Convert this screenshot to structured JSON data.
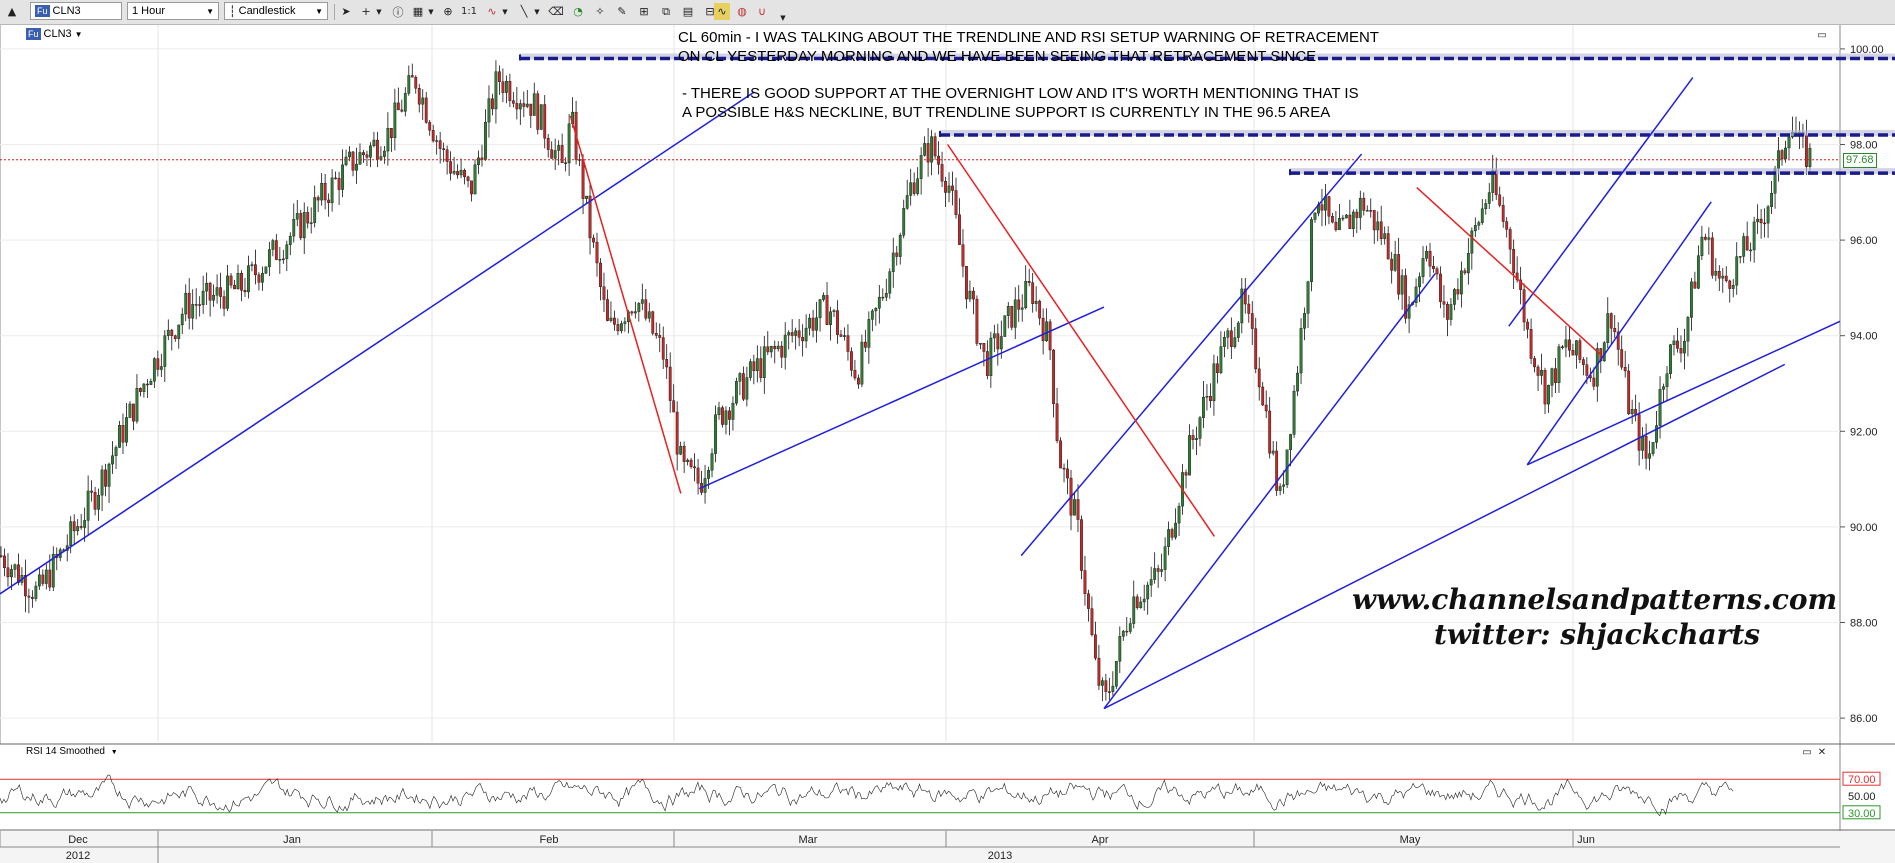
{
  "toolbar": {
    "symbol": "CLN3",
    "symbol_badge": "Fu",
    "interval": "1 Hour",
    "chart_type": "Candlestick"
  },
  "symbol_tag": {
    "badge": "Fu",
    "label": "CLN3"
  },
  "annotations": {
    "line1": "CL 60min - I WAS TALKING ABOUT THE TRENDLINE AND RSI SETUP WARNING OF RETRACEMENT",
    "line2": "ON CL YESTERDAY MORNING AND WE HAVE BEEN SEEING THAT RETRACEMENT SINCE",
    "line3": "- THERE IS GOOD SUPPORT AT THE OVERNIGHT LOW AND IT'S WORTH MENTIONING THAT IS",
    "line4": "A POSSIBLE H&S NECKLINE, BUT TRENDLINE SUPPORT IS CURRENTLY IN THE 96.5 AREA"
  },
  "watermark": {
    "site": "www.channelsandpatterns.com",
    "twitter": "twitter: shjackcharts"
  },
  "price_axis": {
    "ticks": [
      "100.00",
      "98.00",
      "96.00",
      "94.00",
      "92.00",
      "90.00",
      "88.00",
      "86.00"
    ],
    "current_price": "97.68",
    "current_color": "#2a8a2a"
  },
  "rsi": {
    "label": "RSI 14 Smoothed",
    "upper": "70.00",
    "mid": "50.00",
    "lower": "30.00",
    "upper_color": "#e03030",
    "lower_color": "#2a9a2a"
  },
  "time_axis": {
    "months": [
      "Dec",
      "Jan",
      "Feb",
      "Mar",
      "Apr",
      "May",
      "Jun"
    ],
    "years": [
      "2012",
      "2013"
    ]
  },
  "colors": {
    "bull": "#2e7d32",
    "bear": "#c62828",
    "trend_blue": "#1f1fe0",
    "trend_red": "#e82020",
    "level_navy": "#1a1a8a",
    "price_line": "#d02020"
  },
  "chart_data": {
    "type": "candlestick",
    "ylim": [
      85.5,
      100.5
    ],
    "levels": [
      99.8,
      98.2,
      97.4
    ],
    "current": 97.68,
    "swing_points": [
      [
        0,
        89.4
      ],
      [
        0.02,
        88.6
      ],
      [
        0.05,
        90.6
      ],
      [
        0.08,
        93.2
      ],
      [
        0.1,
        94.6
      ],
      [
        0.13,
        95.0
      ],
      [
        0.16,
        96.2
      ],
      [
        0.19,
        97.6
      ],
      [
        0.21,
        98.2
      ],
      [
        0.225,
        99.4
      ],
      [
        0.24,
        97.8
      ],
      [
        0.255,
        97.0
      ],
      [
        0.27,
        99.4
      ],
      [
        0.29,
        98.8
      ],
      [
        0.305,
        97.5
      ],
      [
        0.31,
        98.5
      ],
      [
        0.32,
        96.2
      ],
      [
        0.33,
        94.1
      ],
      [
        0.345,
        94.8
      ],
      [
        0.36,
        93.6
      ],
      [
        0.37,
        91.2
      ],
      [
        0.38,
        90.9
      ],
      [
        0.39,
        92.3
      ],
      [
        0.41,
        93.3
      ],
      [
        0.43,
        94.0
      ],
      [
        0.45,
        94.6
      ],
      [
        0.465,
        93.2
      ],
      [
        0.48,
        95.0
      ],
      [
        0.495,
        97.2
      ],
      [
        0.505,
        98.0
      ],
      [
        0.515,
        97.2
      ],
      [
        0.525,
        95.0
      ],
      [
        0.535,
        93.4
      ],
      [
        0.55,
        94.5
      ],
      [
        0.56,
        95.0
      ],
      [
        0.57,
        93.8
      ],
      [
        0.575,
        91.5
      ],
      [
        0.585,
        90.0
      ],
      [
        0.595,
        87.0
      ],
      [
        0.6,
        86.3
      ],
      [
        0.615,
        88.5
      ],
      [
        0.63,
        89.0
      ],
      [
        0.645,
        91.5
      ],
      [
        0.66,
        93.3
      ],
      [
        0.675,
        94.7
      ],
      [
        0.685,
        93.0
      ],
      [
        0.695,
        90.5
      ],
      [
        0.705,
        93.5
      ],
      [
        0.715,
        97.1
      ],
      [
        0.725,
        96.0
      ],
      [
        0.74,
        96.8
      ],
      [
        0.755,
        95.8
      ],
      [
        0.765,
        94.5
      ],
      [
        0.775,
        96.0
      ],
      [
        0.785,
        94.3
      ],
      [
        0.795,
        95.5
      ],
      [
        0.81,
        97.2
      ],
      [
        0.82,
        96.0
      ],
      [
        0.83,
        94.0
      ],
      [
        0.84,
        92.8
      ],
      [
        0.85,
        93.8
      ],
      [
        0.865,
        93.2
      ],
      [
        0.875,
        94.5
      ],
      [
        0.885,
        92.5
      ],
      [
        0.895,
        91.3
      ],
      [
        0.905,
        93.5
      ],
      [
        0.915,
        94.0
      ],
      [
        0.925,
        96.2
      ],
      [
        0.935,
        95.0
      ],
      [
        0.945,
        95.6
      ],
      [
        0.955,
        96.2
      ],
      [
        0.965,
        97.4
      ],
      [
        0.972,
        98.5
      ],
      [
        0.978,
        97.9
      ],
      [
        0.985,
        97.68
      ]
    ],
    "trendlines_blue": [
      [
        0.0,
        88.6,
        0.41,
        99.1
      ],
      [
        0.38,
        90.8,
        0.6,
        94.6
      ],
      [
        0.6,
        86.2,
        0.97,
        93.4
      ],
      [
        0.6,
        86.2,
        0.78,
        95.3
      ],
      [
        0.555,
        89.4,
        0.74,
        97.8
      ],
      [
        0.83,
        91.3,
        0.93,
        96.8
      ],
      [
        0.82,
        94.2,
        0.92,
        99.4
      ],
      [
        0.83,
        91.3,
        1.0,
        94.3
      ]
    ],
    "trendlines_red": [
      [
        0.31,
        98.6,
        0.37,
        90.7
      ],
      [
        0.515,
        98.0,
        0.66,
        89.8
      ],
      [
        0.77,
        97.1,
        0.87,
        93.6
      ]
    ]
  }
}
